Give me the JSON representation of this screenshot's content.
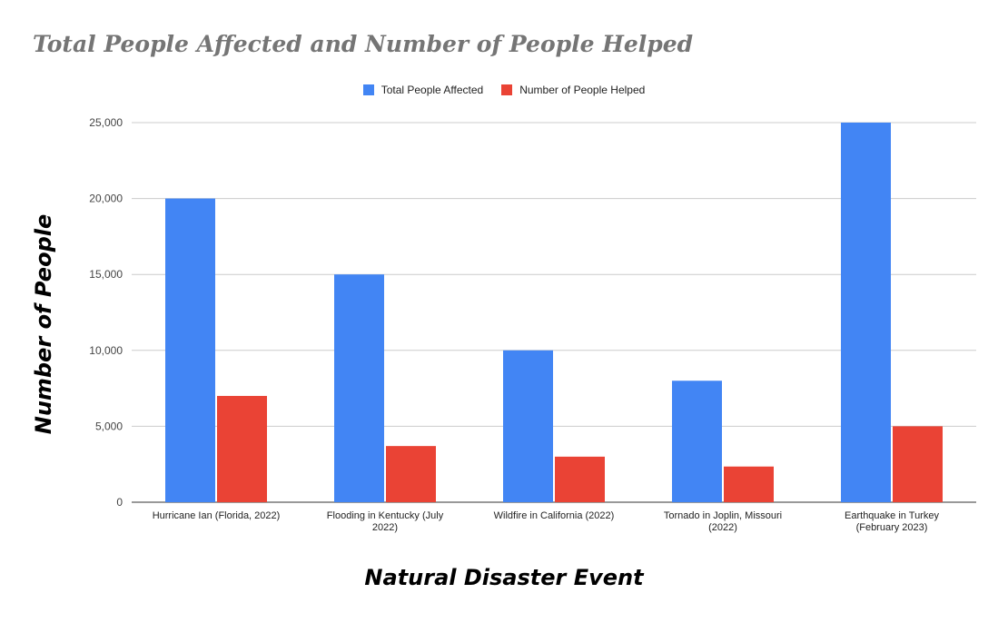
{
  "chart_data": {
    "type": "bar",
    "title": "Total People Affected and Number of People Helped",
    "xlabel": "Natural Disaster Event",
    "ylabel": "Number of People",
    "categories": [
      [
        "Hurricane Ian (Florida, 2022)"
      ],
      [
        "Flooding in Kentucky (July",
        "2022)"
      ],
      [
        "Wildfire in California (2022)"
      ],
      [
        "Tornado in Joplin, Missouri",
        "(2022)"
      ],
      [
        "Earthquake in Turkey",
        "(February 2023)"
      ]
    ],
    "series": [
      {
        "name": "Total People Affected",
        "color": "#4285f4",
        "values": [
          20000,
          15000,
          10000,
          8000,
          25000
        ]
      },
      {
        "name": "Number of People Helped",
        "color": "#ea4335",
        "values": [
          7000,
          3700,
          3000,
          2350,
          5000
        ]
      }
    ],
    "ylim": [
      0,
      25000
    ],
    "yticks": [
      0,
      5000,
      10000,
      15000,
      20000,
      25000
    ],
    "ytick_labels": [
      "0",
      "5,000",
      "10,000",
      "15,000",
      "20,000",
      "25,000"
    ],
    "grid": true,
    "legend_position": "top-center"
  }
}
